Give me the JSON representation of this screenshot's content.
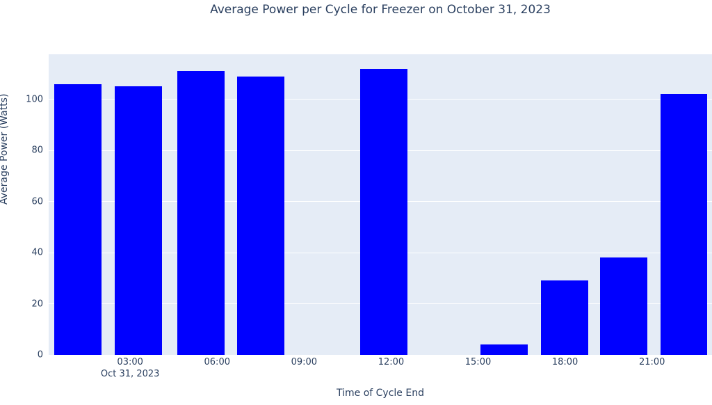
{
  "page": {
    "background_color": "#ffffff"
  },
  "chart_data": {
    "type": "bar",
    "title": "Average Power per Cycle for Freezer on October 31, 2023",
    "xlabel": "Time of Cycle End",
    "ylabel": "Average Power (Watts)",
    "x_date_label": "Oct 31, 2023",
    "legend": "none",
    "grid": "horizontal-only",
    "series": [
      {
        "name": "Average Power per Cycle",
        "x": [
          "01:12",
          "03:17",
          "05:26",
          "07:30",
          "11:45",
          "15:54",
          "17:59",
          "20:02",
          "22:06"
        ],
        "x_hours": [
          1.2,
          3.28,
          5.44,
          7.5,
          11.75,
          15.9,
          17.98,
          20.03,
          22.1
        ],
        "values": [
          106,
          105,
          111,
          109,
          112,
          4,
          29,
          38,
          102
        ]
      }
    ],
    "bar_width_hours": 1.62,
    "x_ticks": [
      {
        "hour": 3,
        "label": "03:00"
      },
      {
        "hour": 6,
        "label": "06:00"
      },
      {
        "hour": 9,
        "label": "09:00"
      },
      {
        "hour": 12,
        "label": "12:00"
      },
      {
        "hour": 15,
        "label": "15:00"
      },
      {
        "hour": 18,
        "label": "18:00"
      },
      {
        "hour": 21,
        "label": "21:00"
      }
    ],
    "y_ticks": [
      0,
      20,
      40,
      60,
      80,
      100
    ],
    "x_range_hours": [
      0.19,
      23.07
    ],
    "ylim": [
      0,
      117.6
    ],
    "colors": {
      "bar": "#0000ff",
      "plot_background": "#e5ecf6",
      "gridline": "#ffffff",
      "text": "#2a3f5f"
    }
  }
}
